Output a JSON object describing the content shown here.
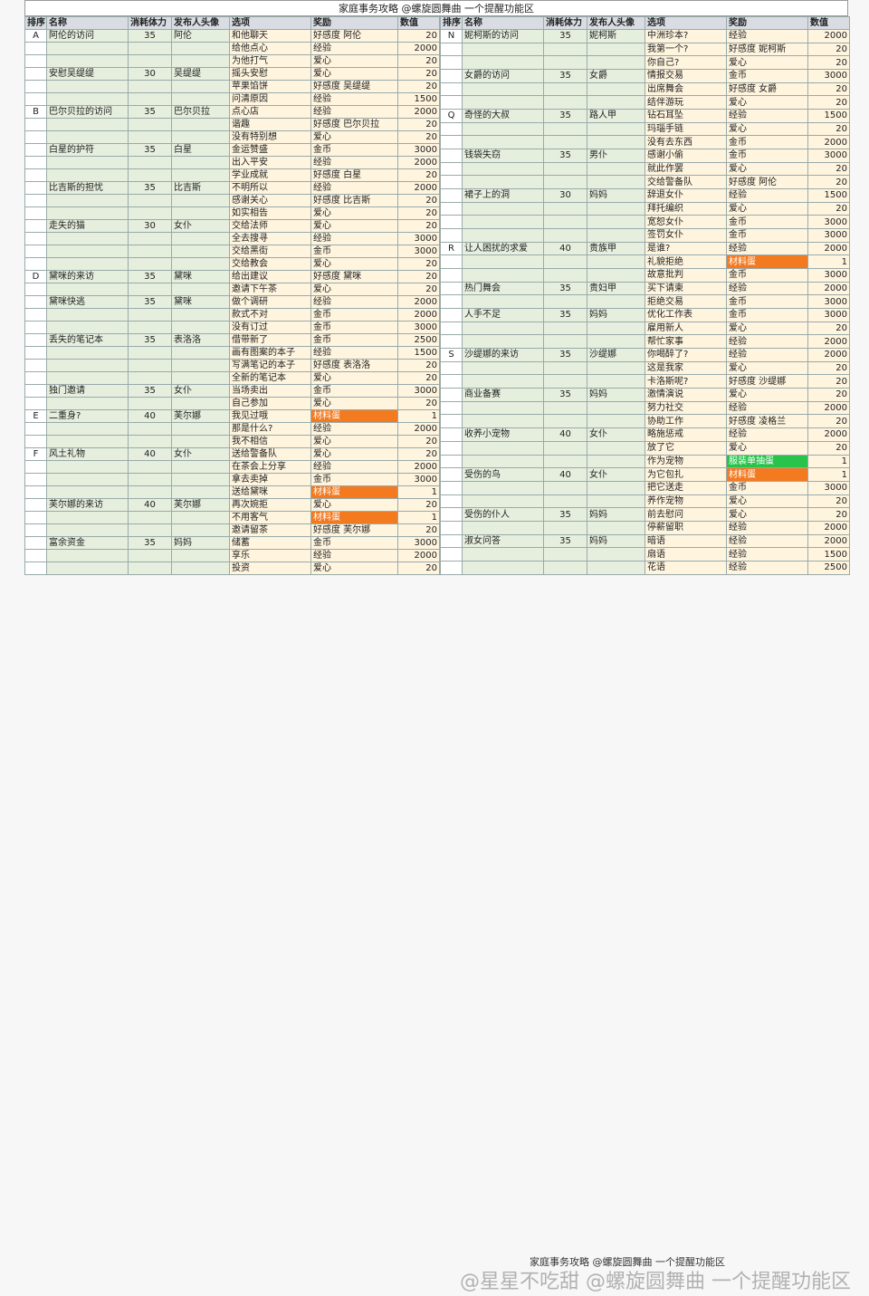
{
  "title": "家庭事务攻略  @螺旋圆舞曲 一个提醒功能区",
  "headers": [
    "排序",
    "名称",
    "消耗体力",
    "发布人头像",
    "选项",
    "奖励",
    "数值"
  ],
  "left": [
    [
      "A",
      "阿伦的访问",
      "35",
      "阿伦",
      "和他聊天",
      "好感度 阿伦",
      "20"
    ],
    [
      "",
      "",
      "",
      "",
      "给他点心",
      "经验",
      "2000"
    ],
    [
      "",
      "",
      "",
      "",
      "为他打气",
      "爱心",
      "20"
    ],
    [
      "",
      "安慰吴缇缇",
      "30",
      "吴缇缇",
      "摇头安慰",
      "爱心",
      "20"
    ],
    [
      "",
      "",
      "",
      "",
      "苹果馅饼",
      "好感度 吴缇缇",
      "20"
    ],
    [
      "",
      "",
      "",
      "",
      "问清原因",
      "经验",
      "1500"
    ],
    [
      "B",
      "巴尔贝拉的访问",
      "35",
      "巴尔贝拉",
      "点心店",
      "经验",
      "2000"
    ],
    [
      "",
      "",
      "",
      "",
      "谐趣",
      "好感度 巴尔贝拉",
      "20"
    ],
    [
      "",
      "",
      "",
      "",
      "没有特别想",
      "爱心",
      "20"
    ],
    [
      "",
      "白星的护符",
      "35",
      "白星",
      "金运赞盛",
      "金币",
      "3000"
    ],
    [
      "",
      "",
      "",
      "",
      "出入平安",
      "经验",
      "2000"
    ],
    [
      "",
      "",
      "",
      "",
      "学业成就",
      "好感度 白星",
      "20"
    ],
    [
      "",
      "比吉斯的担忧",
      "35",
      "比吉斯",
      "不明所以",
      "经验",
      "2000"
    ],
    [
      "",
      "",
      "",
      "",
      "感谢关心",
      "好感度 比吉斯",
      "20"
    ],
    [
      "",
      "",
      "",
      "",
      "如实相告",
      "爱心",
      "20"
    ],
    [
      "",
      "走失的猫",
      "30",
      "女仆",
      "交给法师",
      "爱心",
      "20"
    ],
    [
      "",
      "",
      "",
      "",
      "全去搜寻",
      "经验",
      "3000"
    ],
    [
      "",
      "",
      "",
      "",
      "交给黑街",
      "金币",
      "3000"
    ],
    [
      "",
      "",
      "",
      "",
      "交给教会",
      "爱心",
      "20"
    ],
    [
      "D",
      "黛咪的来访",
      "35",
      "黛咪",
      "给出建议",
      "好感度 黛咪",
      "20"
    ],
    [
      "",
      "",
      "",
      "",
      "邀请下午茶",
      "爱心",
      "20"
    ],
    [
      "",
      "黛咪快逃",
      "35",
      "黛咪",
      "做个调研",
      "经验",
      "2000"
    ],
    [
      "",
      "",
      "",
      "",
      "款式不对",
      "金币",
      "2000"
    ],
    [
      "",
      "",
      "",
      "",
      "没有订过",
      "金币",
      "3000"
    ],
    [
      "",
      "丢失的笔记本",
      "35",
      "表洛洛",
      "借带新了",
      "金币",
      "2500"
    ],
    [
      "",
      "",
      "",
      "",
      "画有图案的本子",
      "经验",
      "1500"
    ],
    [
      "",
      "",
      "",
      "",
      "写满笔记的本子",
      "好感度 表洛洛",
      "20"
    ],
    [
      "",
      "",
      "",
      "",
      "全新的笔记本",
      "爱心",
      "20"
    ],
    [
      "",
      "独门邀请",
      "35",
      "女仆",
      "当场卖出",
      "金币",
      "3000"
    ],
    [
      "",
      "",
      "",
      "",
      "自己参加",
      "爱心",
      "20"
    ],
    [
      "E",
      "二重身?",
      "40",
      "芙尔娜",
      "我见过哦",
      "材料蛋",
      "1"
    ],
    [
      "",
      "",
      "",
      "",
      "那是什么?",
      "经验",
      "2000"
    ],
    [
      "",
      "",
      "",
      "",
      "我不相信",
      "爱心",
      "20"
    ],
    [
      "F",
      "风土礼物",
      "40",
      "女仆",
      "送给警备队",
      "爱心",
      "20"
    ],
    [
      "",
      "",
      "",
      "",
      "在茶会上分享",
      "经验",
      "2000"
    ],
    [
      "",
      "",
      "",
      "",
      "拿去卖掉",
      "金币",
      "3000"
    ],
    [
      "",
      "",
      "",
      "",
      "送给黛咪",
      "材料蛋",
      "1"
    ],
    [
      "",
      "芙尔娜的来访",
      "40",
      "芙尔娜",
      "再次婉拒",
      "爱心",
      "20"
    ],
    [
      "",
      "",
      "",
      "",
      "不用客气",
      "材料蛋",
      "1"
    ],
    [
      "",
      "",
      "",
      "",
      "邀请留茶",
      "好感度 芙尔娜",
      "20"
    ],
    [
      "",
      "富余资金",
      "35",
      "妈妈",
      "储蓄",
      "金币",
      "3000"
    ],
    [
      "",
      "",
      "",
      "",
      "享乐",
      "经验",
      "2000"
    ],
    [
      "",
      "",
      "",
      "",
      "投资",
      "爱心",
      "20"
    ]
  ],
  "right": [
    [
      "N",
      "妮柯斯的访问",
      "35",
      "妮柯斯",
      "中洲珍本?",
      "经验",
      "2000"
    ],
    [
      "",
      "",
      "",
      "",
      "我第一个?",
      "好感度 妮柯斯",
      "20"
    ],
    [
      "",
      "",
      "",
      "",
      "你自己?",
      "爱心",
      "20"
    ],
    [
      "",
      "女爵的访问",
      "35",
      "女爵",
      "情报交易",
      "金币",
      "3000"
    ],
    [
      "",
      "",
      "",
      "",
      "出席舞会",
      "好感度 女爵",
      "20"
    ],
    [
      "",
      "",
      "",
      "",
      "结伴游玩",
      "爱心",
      "20"
    ],
    [
      "Q",
      "奇怪的大叔",
      "35",
      "路人甲",
      "钻石耳坠",
      "经验",
      "1500"
    ],
    [
      "",
      "",
      "",
      "",
      "玛瑙手链",
      "爱心",
      "20"
    ],
    [
      "",
      "",
      "",
      "",
      "没有去东西",
      "金币",
      "2000"
    ],
    [
      "",
      "钱袋失窃",
      "35",
      "男仆",
      "感谢小偷",
      "金币",
      "3000"
    ],
    [
      "",
      "",
      "",
      "",
      "就此作罢",
      "爱心",
      "20"
    ],
    [
      "",
      "",
      "",
      "",
      "交给警备队",
      "好感度 阿伦",
      "20"
    ],
    [
      "",
      "裙子上的洞",
      "30",
      "妈妈",
      "辞退女仆",
      "经验",
      "1500"
    ],
    [
      "",
      "",
      "",
      "",
      "拜托编织",
      "爱心",
      "20"
    ],
    [
      "",
      "",
      "",
      "",
      "宽恕女仆",
      "金币",
      "3000"
    ],
    [
      "",
      "",
      "",
      "",
      "签罚女仆",
      "金币",
      "3000"
    ],
    [
      "R",
      "让人困扰的求爱",
      "40",
      "贵族甲",
      "是谁?",
      "经验",
      "2000"
    ],
    [
      "",
      "",
      "",
      "",
      "礼貌拒绝",
      "材料蛋",
      "1"
    ],
    [
      "",
      "",
      "",
      "",
      "故意批判",
      "金币",
      "3000"
    ],
    [
      "",
      "热门舞会",
      "35",
      "贵妇甲",
      "买下请柬",
      "经验",
      "2000"
    ],
    [
      "",
      "",
      "",
      "",
      "拒绝交易",
      "金币",
      "3000"
    ],
    [
      "",
      "人手不足",
      "35",
      "妈妈",
      "优化工作表",
      "金币",
      "3000"
    ],
    [
      "",
      "",
      "",
      "",
      "雇用新人",
      "爱心",
      "20"
    ],
    [
      "",
      "",
      "",
      "",
      "帮忙家事",
      "经验",
      "2000"
    ],
    [
      "S",
      "沙缇娜的来访",
      "35",
      "沙缇娜",
      "你喝醉了?",
      "经验",
      "2000"
    ],
    [
      "",
      "",
      "",
      "",
      "这是我家",
      "爱心",
      "20"
    ],
    [
      "",
      "",
      "",
      "",
      "卡洛斯呢?",
      "好感度 沙缇娜",
      "20"
    ],
    [
      "",
      "商业备赛",
      "35",
      "妈妈",
      "激情演说",
      "爱心",
      "20"
    ],
    [
      "",
      "",
      "",
      "",
      "努力社交",
      "经验",
      "2000"
    ],
    [
      "",
      "",
      "",
      "",
      "协助工作",
      "好感度 凌格兰",
      "20"
    ],
    [
      "",
      "收养小宠物",
      "40",
      "女仆",
      "略施惩戒",
      "经验",
      "2000"
    ],
    [
      "",
      "",
      "",
      "",
      "放了它",
      "爱心",
      "20"
    ],
    [
      "",
      "",
      "",
      "",
      "作为宠物",
      "服装单抽蛋",
      "1"
    ],
    [
      "",
      "受伤的鸟",
      "40",
      "女仆",
      "为它包扎",
      "材料蛋",
      "1"
    ],
    [
      "",
      "",
      "",
      "",
      "把它送走",
      "金币",
      "3000"
    ],
    [
      "",
      "",
      "",
      "",
      "养作宠物",
      "爱心",
      "20"
    ],
    [
      "",
      "受伤的仆人",
      "35",
      "妈妈",
      "前去慰问",
      "爱心",
      "20"
    ],
    [
      "",
      "",
      "",
      "",
      "停薪留职",
      "经验",
      "2000"
    ],
    [
      "",
      "淑女问答",
      "35",
      "妈妈",
      "暗语",
      "经验",
      "2000"
    ],
    [
      "",
      "",
      "",
      "",
      "扇语",
      "经验",
      "1500"
    ],
    [
      "",
      "",
      "",
      "",
      "花语",
      "经验",
      "2500"
    ]
  ],
  "bottom": "家庭事务攻略 @螺旋圆舞曲 一个提醒功能区",
  "watermark": "@星星不吃甜 @螺旋圆舞曲 一个提醒功能区",
  "colors": {
    "orange": "#f47a20",
    "green": "#27c34a"
  }
}
